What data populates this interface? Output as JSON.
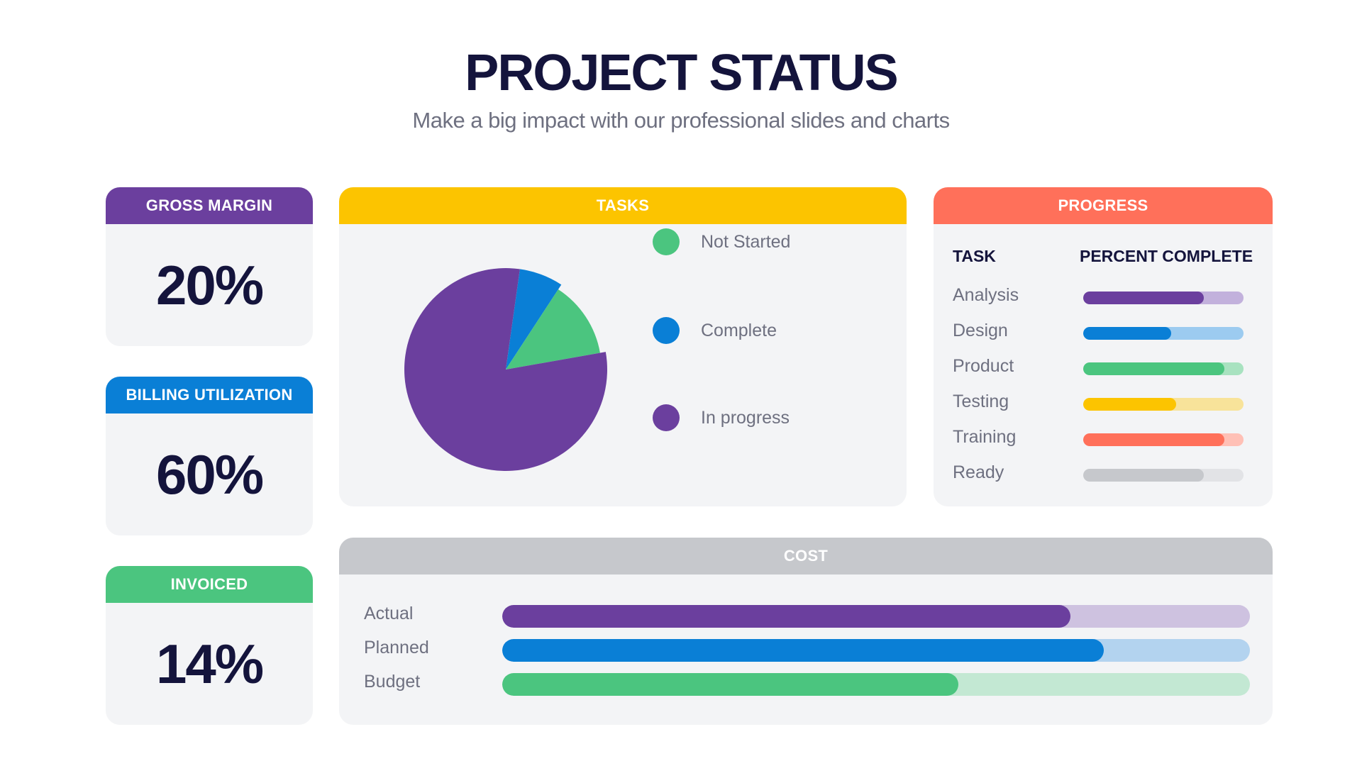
{
  "header": {
    "title": "PROJECT STATUS",
    "subtitle": "Make a big impact with our professional slides and charts"
  },
  "kpis": [
    {
      "label": "GROSS MARGIN",
      "value": "20%",
      "color": "#6b3f9e"
    },
    {
      "label": "BILLING UTILIZATION",
      "value": "60%",
      "color": "#0a7fd6"
    },
    {
      "label": "INVOICED",
      "value": "14%",
      "color": "#4bc57f"
    }
  ],
  "tasks": {
    "header": "TASKS",
    "header_color": "#fcc400"
  },
  "progress": {
    "header": "PROGRESS",
    "header_color": "#ff705a",
    "col_task": "TASK",
    "col_percent": "PERCENT COMPLETE"
  },
  "cost": {
    "header": "COST",
    "header_color": "#c6c8cc"
  },
  "chart_data": [
    {
      "type": "pie",
      "categories": [
        "Not Started",
        "Complete",
        "In progress"
      ],
      "values": [
        13,
        7,
        80
      ],
      "colors": [
        "#4bc57f",
        "#0a7fd6",
        "#6b3f9e"
      ],
      "exploded": "Not Started"
    },
    {
      "type": "bar",
      "orientation": "horizontal",
      "categories": [
        "Analysis",
        "Design",
        "Product",
        "Testing",
        "Training",
        "Ready"
      ],
      "values": [
        75,
        55,
        88,
        58,
        88,
        75
      ],
      "xlim": [
        0,
        100
      ],
      "colors": [
        "#6b3f9e",
        "#0a7fd6",
        "#4bc57f",
        "#fcc400",
        "#ff705a",
        "#c6c8cc"
      ],
      "track_colors": [
        "#c2b1dc",
        "#9ccbf0",
        "#a8e2c0",
        "#f8e39a",
        "#ffc0b6",
        "#e2e3e6"
      ]
    },
    {
      "type": "bar",
      "orientation": "horizontal",
      "categories": [
        "Actual",
        "Planned",
        "Budget"
      ],
      "values": [
        76,
        80.5,
        61
      ],
      "xlim": [
        0,
        100
      ],
      "colors": [
        "#6b3f9e",
        "#0a7fd6",
        "#4bc57f"
      ],
      "track_colors": [
        "#cec2e0",
        "#b3d3ef",
        "#c3e8d3"
      ]
    }
  ]
}
